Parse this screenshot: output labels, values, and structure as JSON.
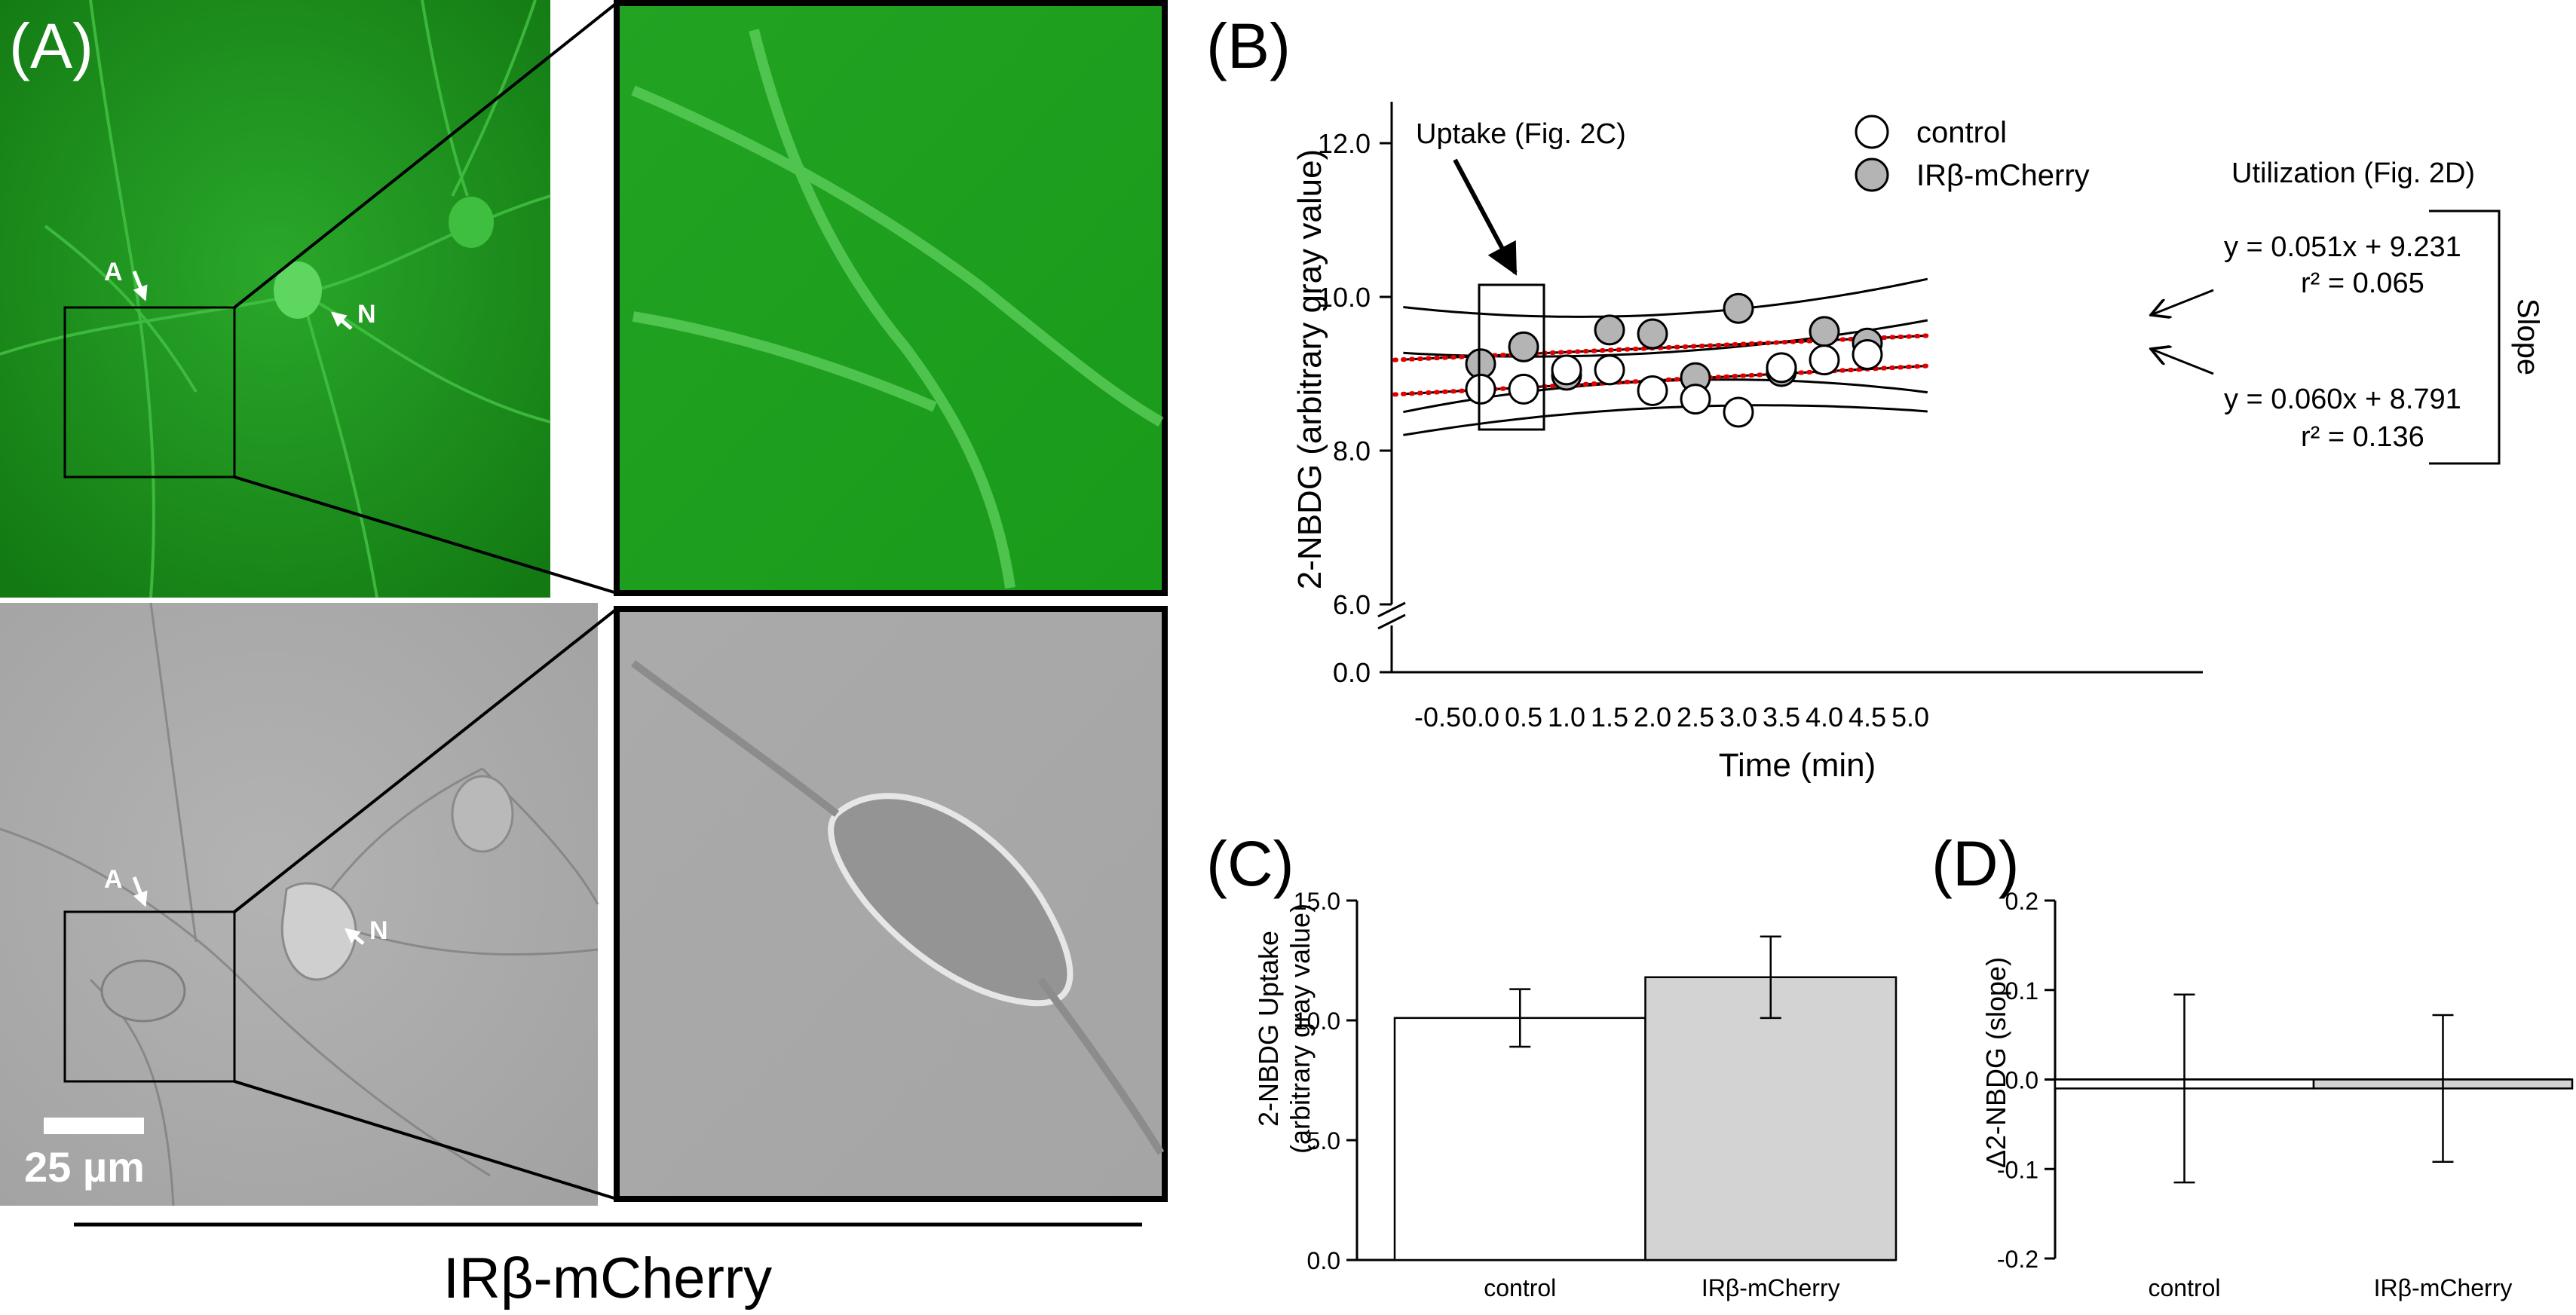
{
  "panels": {
    "a": {
      "label": "(A)",
      "scale_bar": "25 µm",
      "arrow_a": "A",
      "arrow_n": "N",
      "group_label": "IRβ-mCherry"
    },
    "b": {
      "label": "(B)"
    },
    "c": {
      "label": "(C)"
    },
    "d": {
      "label": "(D)"
    }
  },
  "colors": {
    "fluorescence_green": "#1f9a1f",
    "brightfield_gray": "#a6a6a6",
    "fit_red": "#e00000",
    "bar_gray": "#d3d3d3"
  },
  "chart_data": [
    {
      "type": "scatter",
      "panel": "B",
      "xlabel": "Time (min)",
      "ylabel": "2-NBDG (arbitrary gray value)",
      "xlim": [
        -1.0,
        5.5
      ],
      "ylim": [
        6.0,
        12.0
      ],
      "xticks": [
        "-0.5",
        "0.0",
        "0.5",
        "1.0",
        "1.5",
        "2.0",
        "2.5",
        "3.0",
        "3.5",
        "4.0",
        "4.5",
        "5.0"
      ],
      "yticks": [
        "6.0",
        "8.0",
        "10.0",
        "12.0"
      ],
      "axis_break_label": "0.0",
      "legend_placement": "top-center",
      "series": [
        {
          "name": "control",
          "color": "#ffffff",
          "points": [
            [
              0.0,
              8.8
            ],
            [
              0.5,
              8.8
            ],
            [
              1.0,
              9.05
            ],
            [
              1.5,
              9.05
            ],
            [
              2.0,
              8.78
            ],
            [
              2.5,
              8.67
            ],
            [
              3.0,
              8.5
            ],
            [
              3.5,
              9.08
            ],
            [
              4.0,
              9.18
            ],
            [
              4.5,
              9.25
            ]
          ],
          "fit": {
            "slope": 0.06,
            "intercept": 8.791,
            "equation": "y = 0.060x + 8.791",
            "r2": "r² = 0.136"
          }
        },
        {
          "name": "IRβ-mCherry",
          "color": "#b4b4b4",
          "points": [
            [
              0.0,
              9.13
            ],
            [
              0.5,
              9.35
            ],
            [
              1.0,
              8.98
            ],
            [
              1.5,
              9.57
            ],
            [
              2.0,
              9.52
            ],
            [
              2.5,
              8.95
            ],
            [
              3.0,
              9.85
            ],
            [
              3.5,
              9.03
            ],
            [
              4.0,
              9.55
            ],
            [
              4.5,
              9.4
            ]
          ],
          "fit": {
            "slope": 0.051,
            "intercept": 9.231,
            "equation": "y = 0.051x + 9.231",
            "r2": "r² = 0.065"
          }
        }
      ],
      "annotations": {
        "uptake": "Uptake (Fig. 2C)",
        "utilization": "Utilization (Fig. 2D)",
        "slope": "Slope"
      }
    },
    {
      "type": "bar",
      "panel": "C",
      "ylabel_line1": "2-NBDG Uptake",
      "ylabel_line2": "(arbitrary gray value)",
      "categories": [
        "control",
        "IRβ-mCherry"
      ],
      "values": [
        10.1,
        11.8
      ],
      "errors": [
        1.2,
        1.7
      ],
      "colors": [
        "#ffffff",
        "#d3d3d3"
      ],
      "ylim": [
        0.0,
        15.0
      ],
      "yticks": [
        "0.0",
        "5.0",
        "10.0",
        "15.0"
      ]
    },
    {
      "type": "bar",
      "panel": "D",
      "ylabel": "Δ2-NBDG (slope)",
      "categories": [
        "control",
        "IRβ-mCherry"
      ],
      "values": [
        -0.01,
        -0.01
      ],
      "errors": [
        0.105,
        0.082
      ],
      "colors": [
        "#ffffff",
        "#d3d3d3"
      ],
      "ylim": [
        -0.2,
        0.2
      ],
      "yticks": [
        "-0.2",
        "-0.1",
        "0.0",
        "0.1",
        "0.2"
      ]
    }
  ]
}
